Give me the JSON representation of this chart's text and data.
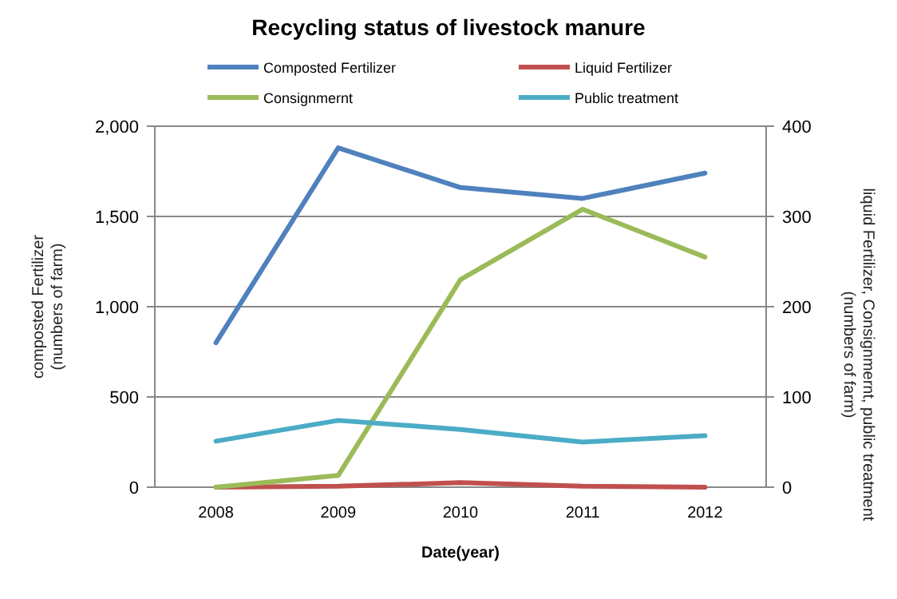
{
  "chart_data": {
    "type": "line",
    "title": "Recycling status of livestock manure",
    "xlabel": "Date(year)",
    "ylabel": "composted Fertilizer\n(numbers of farm)",
    "y2label": "liquid Fertilizer, Consignmernt, public treatment\n(numbers of farm)",
    "categories": [
      "2008",
      "2009",
      "2010",
      "2011",
      "2012"
    ],
    "series": [
      {
        "name": "Composted Fertilizer",
        "color": "#4f81bd",
        "values": [
          800,
          1880,
          1660,
          1600,
          1740
        ]
      },
      {
        "name": "Liquid Fertilizer",
        "color": "#c0504d",
        "values": [
          0,
          1,
          5,
          1,
          0
        ],
        "axis": "y2"
      },
      {
        "name": "Consignmernt",
        "color": "#9bbb59",
        "values": [
          0,
          13,
          230,
          308,
          255
        ],
        "axis": "y2"
      },
      {
        "name": "Public treatment",
        "color": "#4bacc6",
        "values": [
          51,
          74,
          64,
          50,
          57
        ],
        "axis": "y2"
      }
    ],
    "ylim": [
      0,
      2000
    ],
    "yticks": [
      {
        "value": 0,
        "label": "0"
      },
      {
        "value": 500,
        "label": "500"
      },
      {
        "value": 1000,
        "label": "1,000"
      },
      {
        "value": 1500,
        "label": "1,500"
      },
      {
        "value": 2000,
        "label": "2,000"
      }
    ],
    "y2lim": [
      0,
      400
    ],
    "y2ticks": [
      0,
      100,
      200,
      300,
      400
    ],
    "grid": "y",
    "legend": "top",
    "line_style": "solid",
    "marker": "none"
  }
}
